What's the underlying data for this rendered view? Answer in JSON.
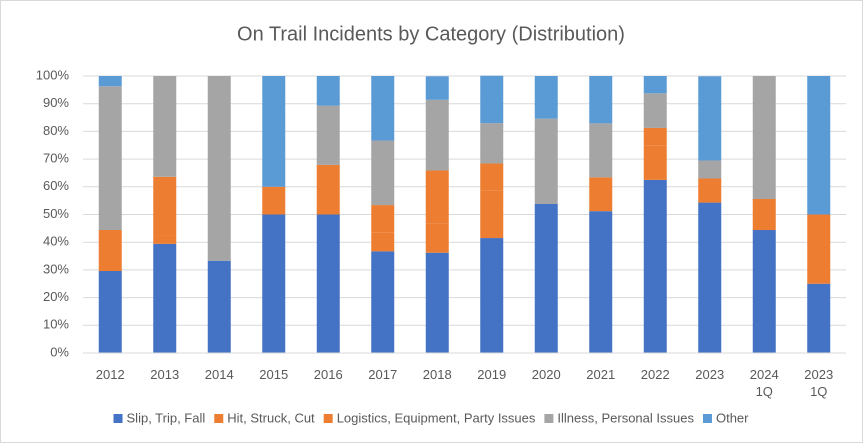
{
  "chart_data": {
    "type": "stacked_bar_100",
    "title": "On Trail Incidents by Category (Distribution)",
    "categories": [
      "2012",
      "2013",
      "2014",
      "2015",
      "2016",
      "2017",
      "2018",
      "2019",
      "2020",
      "2021",
      "2022",
      "2023",
      "2024 1Q",
      "2023 1Q"
    ],
    "series": [
      {
        "name": "Slip, Trip, Fall",
        "color": "#4472c4",
        "values": [
          29.6,
          39.4,
          33.3,
          50,
          50,
          36.7,
          36.2,
          41.5,
          53.8,
          51.2,
          62.5,
          54.3,
          44.4,
          25
        ]
      },
      {
        "name": "Hit, Struck, Cut",
        "color": "#ed7d31",
        "values": [
          14.8,
          3.0,
          0,
          10,
          3.6,
          6.7,
          10.6,
          17.1,
          0,
          12.2,
          12.5,
          2.2,
          11.2,
          25
        ]
      },
      {
        "name": "Logistics, Equipment, Party Issues",
        "color": "#ed7d31",
        "values": [
          0,
          21.2,
          0,
          0,
          14.3,
          10,
          19.1,
          9.8,
          0,
          0,
          6.25,
          6.5,
          0,
          0
        ]
      },
      {
        "name": "Illness, Personal Issues",
        "color": "#a5a5a5",
        "values": [
          51.9,
          36.4,
          66.7,
          0,
          21.4,
          23.3,
          25.5,
          14.6,
          30.8,
          19.5,
          12.5,
          6.5,
          44.4,
          0
        ]
      },
      {
        "name": "Other",
        "color": "#5b9bd5",
        "values": [
          3.7,
          0,
          0,
          40,
          10.7,
          23.3,
          8.5,
          17.1,
          15.4,
          17.1,
          6.25,
          30.4,
          0,
          50
        ]
      }
    ],
    "ylim": [
      0,
      100
    ],
    "yticks": [
      {
        "value": 0,
        "label": "0%"
      },
      {
        "value": 10,
        "label": "10%"
      },
      {
        "value": 20,
        "label": "20%"
      },
      {
        "value": 30,
        "label": "30%"
      },
      {
        "value": 40,
        "label": "40%"
      },
      {
        "value": 50,
        "label": "50%"
      },
      {
        "value": 60,
        "label": "60%"
      },
      {
        "value": 70,
        "label": "70%"
      },
      {
        "value": 80,
        "label": "80%"
      },
      {
        "value": 90,
        "label": "90%"
      },
      {
        "value": 100,
        "label": "100%"
      }
    ],
    "grid": true,
    "legend": "bottom"
  }
}
